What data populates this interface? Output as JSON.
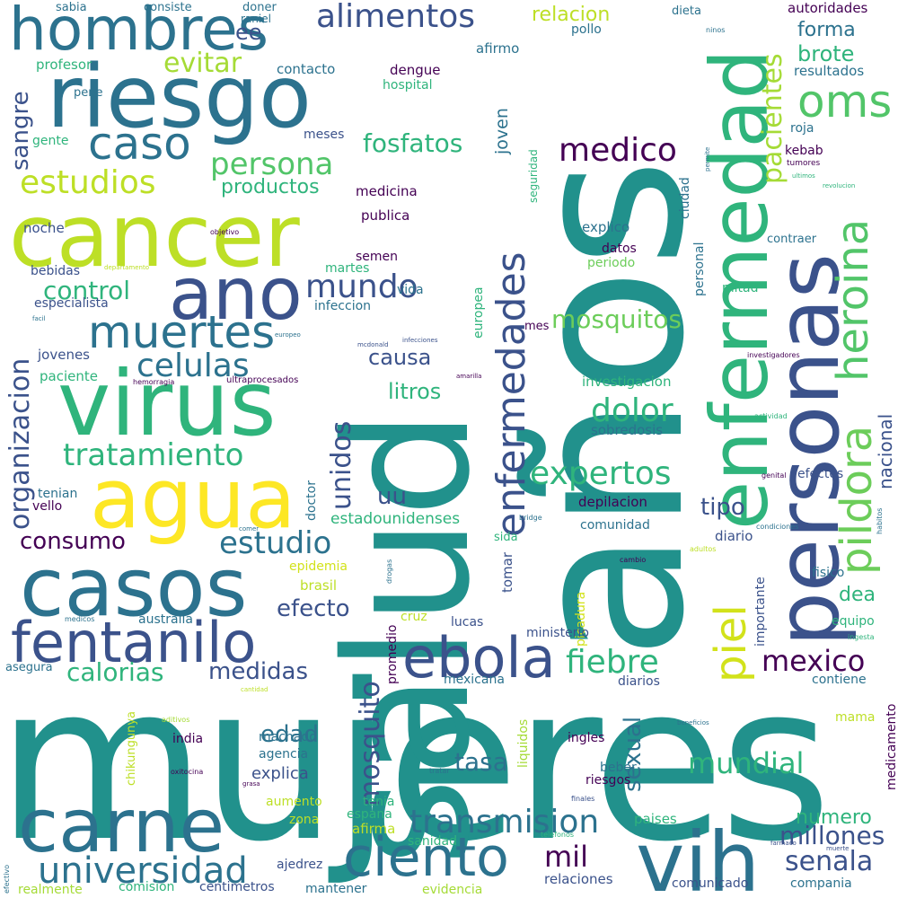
{
  "words": [
    {
      "text": "mujeres",
      "color": "#21918c"
    },
    {
      "text": "años",
      "color": "#21918c"
    },
    {
      "text": "salud",
      "color": "#21918c"
    },
    {
      "text": "personas",
      "color": "#3b528b"
    },
    {
      "text": "enfermedad",
      "color": "#2fb47c"
    },
    {
      "text": "cancer",
      "color": "#bddf26"
    },
    {
      "text": "riesgo",
      "color": "#2c728e"
    },
    {
      "text": "virus",
      "color": "#2fb47c"
    },
    {
      "text": "agua",
      "color": "#fde725"
    },
    {
      "text": "casos",
      "color": "#2c728e"
    },
    {
      "text": "carne",
      "color": "#2c728e"
    },
    {
      "text": "vih",
      "color": "#2c728e"
    },
    {
      "text": "hombres",
      "color": "#2c728e"
    },
    {
      "text": "ano",
      "color": "#3b528b"
    },
    {
      "text": "fentanilo",
      "color": "#3b528b"
    },
    {
      "text": "ebola",
      "color": "#3b528b"
    },
    {
      "text": "enfermedades",
      "color": "#3b528b"
    },
    {
      "text": "piel",
      "color": "#d2e21b"
    },
    {
      "text": "pildora",
      "color": "#6ccd5a"
    },
    {
      "text": "heroina",
      "color": "#52c569"
    },
    {
      "text": "oms",
      "color": "#52c569"
    },
    {
      "text": "ciento",
      "color": "#2c728e"
    },
    {
      "text": "caso",
      "color": "#2c728e"
    },
    {
      "text": "muertes",
      "color": "#2c728e"
    },
    {
      "text": "universidad",
      "color": "#2c728e"
    },
    {
      "text": "transmision",
      "color": "#2c728e"
    },
    {
      "text": "organizacion",
      "color": "#3b528b"
    },
    {
      "text": "mundo",
      "color": "#3b528b"
    },
    {
      "text": "alimentos",
      "color": "#3b528b"
    },
    {
      "text": "estudios",
      "color": "#bddf26"
    },
    {
      "text": "persona",
      "color": "#52c569"
    },
    {
      "text": "pacientes",
      "color": "#a5db36"
    },
    {
      "text": "celulas",
      "color": "#2c728e"
    },
    {
      "text": "tratamiento",
      "color": "#2fb47c"
    },
    {
      "text": "estudio",
      "color": "#2c728e"
    },
    {
      "text": "medico",
      "color": "#440154"
    },
    {
      "text": "expertos",
      "color": "#2fb47c"
    },
    {
      "text": "mexico",
      "color": "#440154"
    },
    {
      "text": "fiebre",
      "color": "#2fb47c"
    },
    {
      "text": "mosquitos",
      "color": "#6ccd5a"
    },
    {
      "text": "dolor",
      "color": "#2fb47c"
    },
    {
      "text": "mundial",
      "color": "#2fb47c"
    },
    {
      "text": "senala",
      "color": "#3b528b"
    },
    {
      "text": "mil",
      "color": "#440154"
    },
    {
      "text": "millones",
      "color": "#3b528b"
    },
    {
      "text": "mosquito",
      "color": "#3b528b"
    },
    {
      "text": "unidos",
      "color": "#3b528b"
    },
    {
      "text": "evitar",
      "color": "#a5db36"
    },
    {
      "text": "sangre",
      "color": "#3b528b"
    },
    {
      "text": "fosfatos",
      "color": "#2fb47c"
    },
    {
      "text": "control",
      "color": "#2fb47c"
    },
    {
      "text": "consumo",
      "color": "#440154"
    },
    {
      "text": "calorias",
      "color": "#2fb47c"
    },
    {
      "text": "medidas",
      "color": "#3b528b"
    },
    {
      "text": "efecto",
      "color": "#3b528b"
    },
    {
      "text": "edad",
      "color": "#2c728e"
    },
    {
      "text": "tasa",
      "color": "#2c728e"
    },
    {
      "text": "sexual",
      "color": "#2c728e"
    },
    {
      "text": "nacional",
      "color": "#3b528b"
    },
    {
      "text": "brote",
      "color": "#2fb47c"
    },
    {
      "text": "forma",
      "color": "#2c728e"
    },
    {
      "text": "tipo",
      "color": "#3b528b"
    },
    {
      "text": "causa",
      "color": "#3b528b"
    },
    {
      "text": "litros",
      "color": "#2fb47c"
    },
    {
      "text": "productos",
      "color": "#2fb47c"
    },
    {
      "text": "uu",
      "color": "#3b528b"
    },
    {
      "text": "ee",
      "color": "#3b528b"
    },
    {
      "text": "numero",
      "color": "#2fb47c"
    },
    {
      "text": "dea",
      "color": "#2fb47c"
    },
    {
      "text": "explica",
      "color": "#3b528b"
    },
    {
      "text": "estadounidenses",
      "color": "#2fb47c"
    },
    {
      "text": "joven",
      "color": "#2c728e"
    },
    {
      "text": "relacion",
      "color": "#bddf26"
    },
    {
      "text": "autoridades",
      "color": "#440154"
    },
    {
      "text": "resultados",
      "color": "#2c728e"
    },
    {
      "text": "contacto",
      "color": "#2c728e"
    },
    {
      "text": "dengue",
      "color": "#440154"
    },
    {
      "text": "hospital",
      "color": "#2fb47c"
    },
    {
      "text": "afirmo",
      "color": "#2c728e"
    },
    {
      "text": "pollo",
      "color": "#2c728e"
    },
    {
      "text": "dieta",
      "color": "#2c728e"
    },
    {
      "text": "ninos",
      "color": "#2c728e"
    },
    {
      "text": "profesor",
      "color": "#2fb47c"
    },
    {
      "text": "pene",
      "color": "#2c728e"
    },
    {
      "text": "gente",
      "color": "#2fb47c"
    },
    {
      "text": "meses",
      "color": "#3b528b"
    },
    {
      "text": "medicina",
      "color": "#440154"
    },
    {
      "text": "publica",
      "color": "#440154"
    },
    {
      "text": "noche",
      "color": "#3b528b"
    },
    {
      "text": "semen",
      "color": "#440154"
    },
    {
      "text": "bebidas",
      "color": "#3b528b"
    },
    {
      "text": "especialista",
      "color": "#3b528b"
    },
    {
      "text": "infeccion",
      "color": "#2c728e"
    },
    {
      "text": "vida",
      "color": "#2c728e"
    },
    {
      "text": "martes",
      "color": "#2fb47c"
    },
    {
      "text": "jovenes",
      "color": "#3b528b"
    },
    {
      "text": "paciente",
      "color": "#2fb47c"
    },
    {
      "text": "hemorragia",
      "color": "#440154"
    },
    {
      "text": "ultraprocesados",
      "color": "#440154"
    },
    {
      "text": "tenian",
      "color": "#2c728e"
    },
    {
      "text": "vello",
      "color": "#440154"
    },
    {
      "text": "doctor",
      "color": "#2c728e"
    },
    {
      "text": "europea",
      "color": "#2fb47c"
    },
    {
      "text": "explico",
      "color": "#2c728e"
    },
    {
      "text": "datos",
      "color": "#440154"
    },
    {
      "text": "periodo",
      "color": "#6ccd5a"
    },
    {
      "text": "personal",
      "color": "#2c728e"
    },
    {
      "text": "ciudad",
      "color": "#2c728e"
    },
    {
      "text": "seguridad",
      "color": "#2fb47c"
    },
    {
      "text": "kebab",
      "color": "#440154"
    },
    {
      "text": "roja",
      "color": "#2c728e"
    },
    {
      "text": "tumores",
      "color": "#440154"
    },
    {
      "text": "ultimos",
      "color": "#2fb47c"
    },
    {
      "text": "revolucion",
      "color": "#2fb47c"
    },
    {
      "text": "permite",
      "color": "#2c728e"
    },
    {
      "text": "contraer",
      "color": "#2c728e"
    },
    {
      "text": "mitad",
      "color": "#2fb47c"
    },
    {
      "text": "investigacion",
      "color": "#2fb47c"
    },
    {
      "text": "sobredosis",
      "color": "#2c728e"
    },
    {
      "text": "depilacion",
      "color": "#440154"
    },
    {
      "text": "comunidad",
      "color": "#2c728e"
    },
    {
      "text": "efectos",
      "color": "#3b528b"
    },
    {
      "text": "diario",
      "color": "#3b528b"
    },
    {
      "text": "sida",
      "color": "#2fb47c"
    },
    {
      "text": "tomar",
      "color": "#3b528b"
    },
    {
      "text": "picadura",
      "color": "#d2e21b"
    },
    {
      "text": "drogas",
      "color": "#2c728e"
    },
    {
      "text": "cambio",
      "color": "#440154"
    },
    {
      "text": "importante",
      "color": "#3b528b"
    },
    {
      "text": "fisico",
      "color": "#2c728e"
    },
    {
      "text": "equipo",
      "color": "#2fb47c"
    },
    {
      "text": "ingesta",
      "color": "#2fb47c"
    },
    {
      "text": "contiene",
      "color": "#2c728e"
    },
    {
      "text": "mama",
      "color": "#bddf26"
    },
    {
      "text": "medicamento",
      "color": "#440154"
    },
    {
      "text": "habitos",
      "color": "#2c728e"
    },
    {
      "text": "condiciones",
      "color": "#2c728e"
    },
    {
      "text": "adultos",
      "color": "#bddf26"
    },
    {
      "text": "bridge",
      "color": "#2c728e"
    },
    {
      "text": "epidemia",
      "color": "#d2e21b"
    },
    {
      "text": "brasil",
      "color": "#bddf26"
    },
    {
      "text": "cruz",
      "color": "#bddf26"
    },
    {
      "text": "lucas",
      "color": "#3b528b"
    },
    {
      "text": "ministerio",
      "color": "#3b528b"
    },
    {
      "text": "promedio",
      "color": "#440154"
    },
    {
      "text": "mexicana",
      "color": "#2c728e"
    },
    {
      "text": "diarios",
      "color": "#3b528b"
    },
    {
      "text": "liquidos",
      "color": "#a5db36"
    },
    {
      "text": "ingles",
      "color": "#440154"
    },
    {
      "text": "beber",
      "color": "#2c728e"
    },
    {
      "text": "riesgos",
      "color": "#440154"
    },
    {
      "text": "finales",
      "color": "#3b528b"
    },
    {
      "text": "tratar",
      "color": "#2c728e"
    },
    {
      "text": "paises",
      "color": "#2fb47c"
    },
    {
      "text": "espana",
      "color": "#2fb47c"
    },
    {
      "text": "tenia",
      "color": "#2fb47c"
    },
    {
      "text": "afirma",
      "color": "#bddf26"
    },
    {
      "text": "sanidad",
      "color": "#2fb47c"
    },
    {
      "text": "telefonos",
      "color": "#2fb47c"
    },
    {
      "text": "relaciones",
      "color": "#3b528b"
    },
    {
      "text": "evidencia",
      "color": "#a5db36"
    },
    {
      "text": "mantener",
      "color": "#2c728e"
    },
    {
      "text": "comunicado",
      "color": "#3b528b"
    },
    {
      "text": "compania",
      "color": "#2c728e"
    },
    {
      "text": "realmente",
      "color": "#a5db36"
    },
    {
      "text": "comision",
      "color": "#2fb47c"
    },
    {
      "text": "centimetros",
      "color": "#3b528b"
    },
    {
      "text": "ajedrez",
      "color": "#3b528b"
    },
    {
      "text": "aumento",
      "color": "#bddf26"
    },
    {
      "text": "zona",
      "color": "#bddf26"
    },
    {
      "text": "agencia",
      "color": "#2c728e"
    },
    {
      "text": "machado",
      "color": "#2c728e"
    },
    {
      "text": "india",
      "color": "#440154"
    },
    {
      "text": "oxitocina",
      "color": "#440154"
    },
    {
      "text": "grasa",
      "color": "#440154"
    },
    {
      "text": "chikungunya",
      "color": "#bddf26"
    },
    {
      "text": "aditivos",
      "color": "#a5db36"
    },
    {
      "text": "cantidad",
      "color": "#bddf26"
    },
    {
      "text": "beneficios",
      "color": "#2c728e"
    },
    {
      "text": "farmaco",
      "color": "#3b528b"
    },
    {
      "text": "muerte",
      "color": "#3b528b"
    },
    {
      "text": "asegura",
      "color": "#2c728e"
    },
    {
      "text": "australia",
      "color": "#2c728e"
    },
    {
      "text": "medicos",
      "color": "#2c728e"
    },
    {
      "text": "comer",
      "color": "#2c728e"
    },
    {
      "text": "efectivo",
      "color": "#2c728e"
    },
    {
      "text": "sabia",
      "color": "#2c728e"
    },
    {
      "text": "consiste",
      "color": "#2c728e"
    },
    {
      "text": "doner",
      "color": "#2c728e"
    },
    {
      "text": "raniel",
      "color": "#2c728e"
    },
    {
      "text": "departamento",
      "color": "#bddf26"
    },
    {
      "text": "facil",
      "color": "#2c728e"
    },
    {
      "text": "europeo",
      "color": "#2c728e"
    },
    {
      "text": "mcdonald",
      "color": "#3b528b"
    },
    {
      "text": "infecciones",
      "color": "#3b528b"
    },
    {
      "text": "amarilla",
      "color": "#440154"
    },
    {
      "text": "mes",
      "color": "#440154"
    },
    {
      "text": "objetivo",
      "color": "#440154"
    },
    {
      "text": "investigadores",
      "color": "#440154"
    },
    {
      "text": "actividad",
      "color": "#2fb47c"
    },
    {
      "text": "genital",
      "color": "#440154"
    }
  ]
}
